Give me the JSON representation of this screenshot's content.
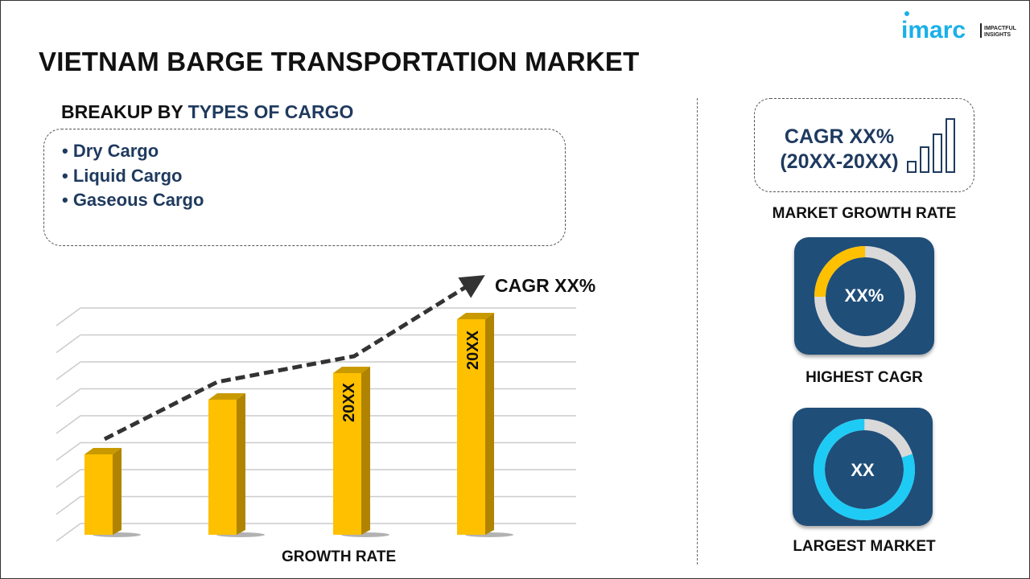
{
  "header": {
    "title": "VIETNAM BARGE TRANSPORTATION MARKET",
    "logo": {
      "brand": "imarc",
      "tagline_1": "IMPACTFUL",
      "tagline_2": "INSIGHTS"
    }
  },
  "breakup": {
    "prefix": "BREAKUP BY ",
    "highlight": "TYPES OF CARGO",
    "items": [
      "• Dry Cargo",
      "• Liquid Cargo",
      "• Gaseous Cargo"
    ]
  },
  "chart": {
    "cagr_label": "CAGR XX%",
    "bar_labels": [
      "",
      "",
      "20XX",
      "20XX"
    ],
    "xlabel": "GROWTH RATE"
  },
  "side": {
    "growth": {
      "line1": "CAGR XX%",
      "line2": "(20XX-20XX)",
      "label": "MARKET GROWTH RATE"
    },
    "highest": {
      "value": "XX%",
      "label": "HIGHEST CAGR",
      "fill": 0.25,
      "color": "#ffc000"
    },
    "largest": {
      "value": "XX",
      "label": "LARGEST MARKET",
      "fill": 0.8,
      "color": "#1ecbf5"
    }
  },
  "colors": {
    "navy": "#1f3a5f",
    "card": "#1f4e79",
    "bar": "#ffc000",
    "bar_side": "#b08400",
    "accent": "#1ab0e8"
  }
}
